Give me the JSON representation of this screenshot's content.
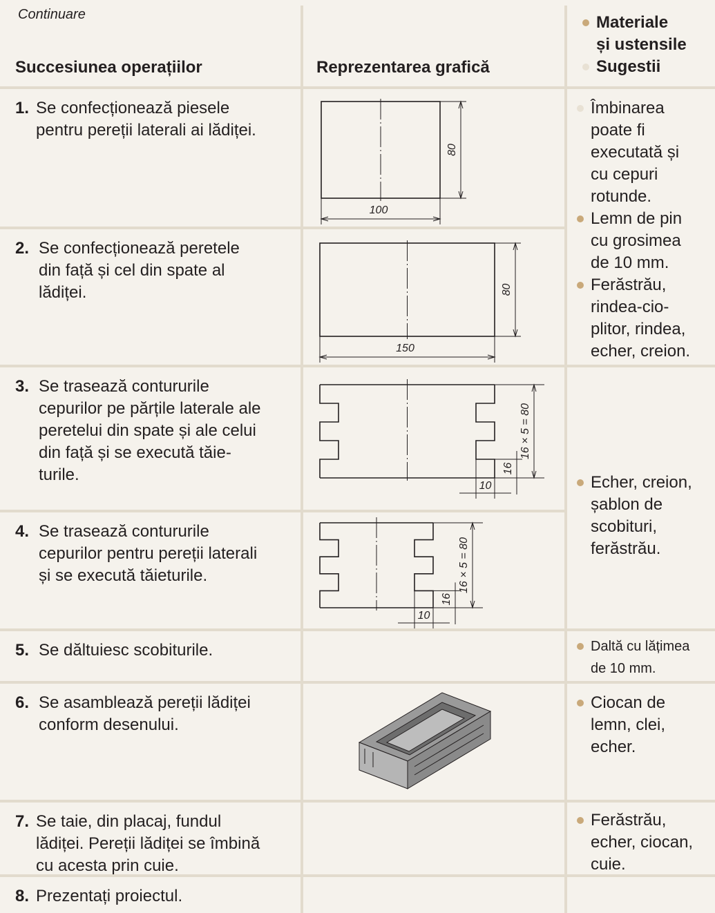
{
  "header": {
    "continuation": "Continuare",
    "columns": [
      "Succesiunea operațiilor",
      "Reprezentarea grafică"
    ],
    "notes_heading": [
      {
        "bullet_color": "#c9a97a",
        "lines": [
          "Materiale",
          "și ustensile"
        ]
      },
      {
        "bullet_color": "#e8e1d4",
        "lines": [
          "Sugestii"
        ]
      }
    ]
  },
  "rows": [
    {
      "number": "1.",
      "lines": [
        "Se confecționează piesele",
        "pentru pereții laterali ai lădiței."
      ],
      "drawing": {
        "width": "100",
        "height": "80"
      }
    },
    {
      "number": "2.",
      "lines": [
        "Se confecționează peretele",
        "din față și cel din spate al",
        "lădiței."
      ],
      "drawing": {
        "width": "150",
        "height": "80"
      }
    },
    {
      "number": "3.",
      "lines": [
        "Se trasează contururile",
        "cepurilor pe părțile laterale ale",
        "peretelui din spate și ale celui",
        "din față și se execută tăie-",
        "turile."
      ],
      "drawing": {
        "height": "16 × 5 = 80",
        "tenon_height": "16",
        "tenon_depth": "10"
      }
    },
    {
      "number": "4.",
      "lines": [
        "Se trasează contururile",
        "cepurilor pentru pereții laterali",
        "și se execută tăieturile."
      ],
      "drawing": {
        "height": "16 × 5 = 80",
        "tenon_height": "16",
        "tenon_depth": "10"
      }
    },
    {
      "number": "5.",
      "lines": [
        "Se dăltuiesc scobiturile."
      ]
    },
    {
      "number": "6.",
      "lines": [
        "Se asamblează pereții lădiței",
        "conform desenului."
      ]
    },
    {
      "number": "7.",
      "lines": [
        "Se taie, din placaj, fundul",
        "lădiței. Pereții lădiței se îmbină",
        "cu acesta prin cuie."
      ]
    },
    {
      "number": "8.",
      "lines": [
        "Prezentați proiectul."
      ]
    }
  ],
  "notes": [
    [
      {
        "bullet_color": "#e8e1d4",
        "lines": [
          "Îmbinarea",
          "poate fi",
          "executată și",
          "cu cepuri",
          "rotunde."
        ]
      },
      {
        "bullet_color": "#c9a97a",
        "lines": [
          "Lemn de pin",
          "cu grosimea",
          "de 10 mm."
        ]
      },
      {
        "bullet_color": "#c9a97a",
        "lines": [
          "Ferăstrău,",
          "rindea-cio-",
          "plitor, rindea,",
          "echer, creion."
        ]
      }
    ],
    [
      {
        "bullet_color": "#c9a97a",
        "lines": [
          "Echer, creion,",
          "șablon de",
          "scobituri,",
          "ferăstrău."
        ]
      }
    ],
    [
      {
        "bullet_color": "#c9a97a",
        "lines": [
          "Daltă cu lățimea",
          "de 10 mm."
        ]
      }
    ],
    [
      {
        "bullet_color": "#c9a97a",
        "lines": [
          "Ciocan de",
          "lemn, clei,",
          "echer."
        ]
      }
    ],
    [
      {
        "bullet_color": "#c9a97a",
        "lines": [
          "Ferăstrău,",
          "echer, ciocan,",
          "cuie."
        ]
      }
    ]
  ]
}
